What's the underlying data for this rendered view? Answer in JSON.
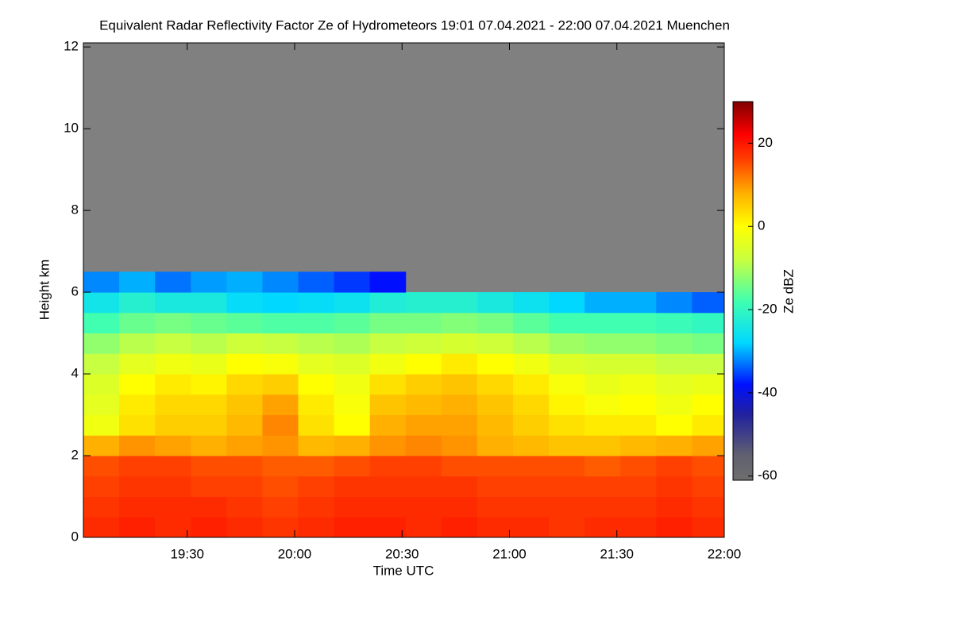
{
  "chart_data": {
    "type": "heatmap",
    "title": "Equivalent Radar Reflectivity Factor Ze of Hydrometeors   19:01 07.04.2021 - 22:00 07.04.2021 Muenchen",
    "xlabel": "Time UTC",
    "ylabel": "Height km",
    "colorbar_label": "Ze dBZ",
    "x": [
      "19:06",
      "19:16",
      "19:26",
      "19:36",
      "19:46",
      "19:56",
      "20:06",
      "20:16",
      "20:26",
      "20:36",
      "20:46",
      "20:56",
      "21:06",
      "21:16",
      "21:26",
      "21:36",
      "21:46",
      "21:56"
    ],
    "y": [
      0.25,
      0.75,
      1.25,
      1.75,
      2.25,
      2.75,
      3.25,
      3.75,
      4.25,
      4.75,
      5.25,
      5.75,
      6.25,
      6.75
    ],
    "z": [
      [
        18,
        19,
        18,
        19,
        18,
        17,
        18,
        19,
        19,
        18,
        19,
        18,
        18,
        17,
        18,
        18,
        19,
        18
      ],
      [
        17,
        18,
        18,
        18,
        17,
        16,
        17,
        18,
        18,
        18,
        18,
        17,
        17,
        17,
        17,
        17,
        18,
        17
      ],
      [
        16,
        17,
        17,
        16,
        16,
        15,
        16,
        17,
        17,
        17,
        17,
        16,
        16,
        16,
        16,
        16,
        17,
        16
      ],
      [
        15,
        16,
        16,
        15,
        15,
        14,
        14,
        15,
        16,
        16,
        15,
        15,
        15,
        15,
        14,
        15,
        16,
        15
      ],
      [
        8,
        10,
        9,
        8,
        9,
        10,
        7,
        8,
        10,
        11,
        10,
        8,
        7,
        6,
        6,
        7,
        8,
        9
      ],
      [
        -2,
        3,
        5,
        5,
        7,
        11,
        3,
        0,
        8,
        9,
        9,
        7,
        5,
        3,
        2,
        2,
        0,
        2
      ],
      [
        -4,
        2,
        4,
        4,
        6,
        9,
        2,
        -1,
        6,
        7,
        8,
        6,
        4,
        1,
        -1,
        0,
        -2,
        0
      ],
      [
        -5,
        0,
        2,
        1,
        4,
        5,
        0,
        -2,
        3,
        5,
        6,
        4,
        2,
        -1,
        -3,
        -2,
        -4,
        -3
      ],
      [
        -8,
        -4,
        -2,
        -3,
        0,
        -1,
        -4,
        -5,
        -2,
        0,
        2,
        0,
        -2,
        -5,
        -6,
        -6,
        -8,
        -8
      ],
      [
        -12,
        -9,
        -8,
        -9,
        -7,
        -8,
        -9,
        -10,
        -8,
        -7,
        -6,
        -7,
        -9,
        -11,
        -12,
        -12,
        -13,
        -14
      ],
      [
        -18,
        -15,
        -14,
        -15,
        -16,
        -17,
        -17,
        -16,
        -14,
        -14,
        -13,
        -14,
        -16,
        -18,
        -18,
        -18,
        -19,
        -20
      ],
      [
        -25,
        -22,
        -24,
        -24,
        -27,
        -28,
        -27,
        -26,
        -23,
        -22,
        -22,
        -24,
        -26,
        -28,
        -30,
        -30,
        -32,
        -34
      ],
      [
        -32,
        -30,
        -33,
        -31,
        -30,
        -32,
        -34,
        -36,
        -38,
        null,
        null,
        null,
        null,
        null,
        null,
        null,
        null,
        null
      ],
      [
        null,
        null,
        null,
        null,
        null,
        null,
        null,
        null,
        null,
        null,
        null,
        null,
        null,
        null,
        null,
        null,
        null,
        null
      ]
    ],
    "xlim": [
      "19:01",
      "22:00"
    ],
    "xticks": [
      "19:30",
      "20:00",
      "20:30",
      "21:00",
      "21:30",
      "22:00"
    ],
    "ylim": [
      0,
      12.1
    ],
    "yticks": [
      0,
      2,
      4,
      6,
      8,
      10,
      12
    ],
    "zlim": [
      -61,
      30
    ],
    "zticks": [
      -60,
      -40,
      -20,
      0,
      20
    ],
    "missing_color": "#808080",
    "colorscale": [
      [
        -61,
        "#6e6e6e"
      ],
      [
        -55,
        "#606070"
      ],
      [
        -45,
        "#2020a0"
      ],
      [
        -38,
        "#0010ff"
      ],
      [
        -28,
        "#00d8ff"
      ],
      [
        -18,
        "#40ffb0"
      ],
      [
        -8,
        "#c8ff40"
      ],
      [
        0,
        "#ffff00"
      ],
      [
        8,
        "#ffb000"
      ],
      [
        16,
        "#ff4000"
      ],
      [
        22,
        "#ff0000"
      ],
      [
        30,
        "#800000"
      ]
    ]
  }
}
